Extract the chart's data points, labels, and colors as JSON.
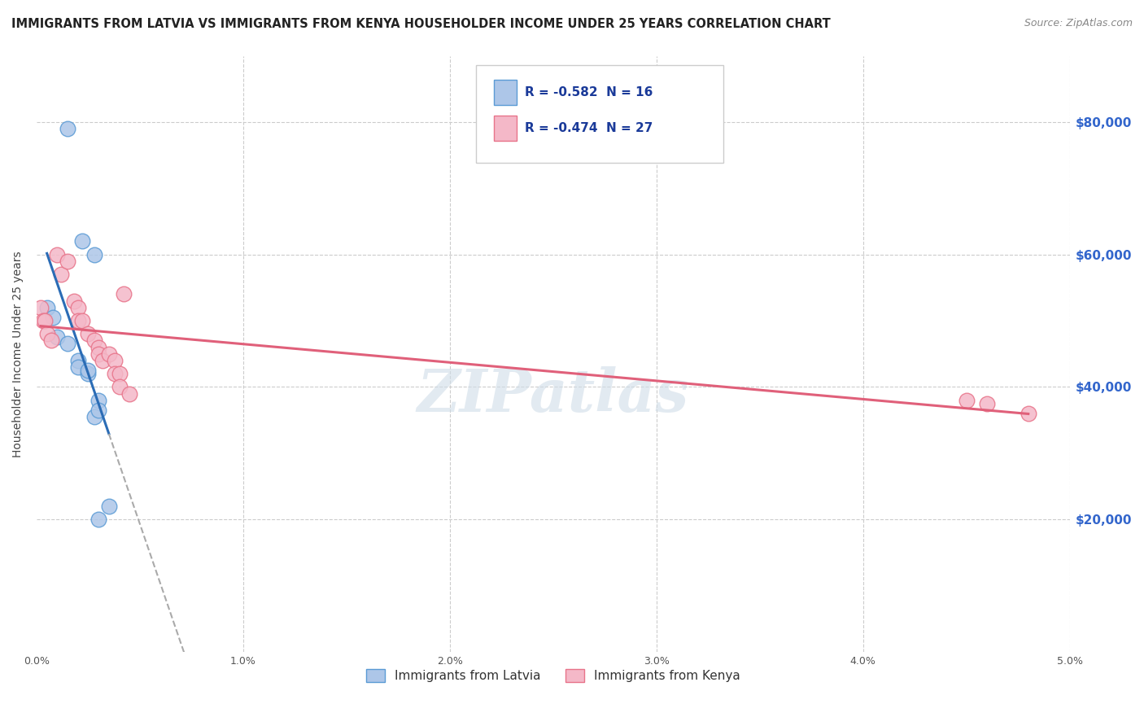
{
  "title": "IMMIGRANTS FROM LATVIA VS IMMIGRANTS FROM KENYA HOUSEHOLDER INCOME UNDER 25 YEARS CORRELATION CHART",
  "source": "Source: ZipAtlas.com",
  "ylabel": "Householder Income Under 25 years",
  "xlim": [
    0.0,
    0.05
  ],
  "ylim": [
    0,
    90000
  ],
  "background_color": "#ffffff",
  "latvia_color": "#adc6e8",
  "latvia_edge_color": "#5b9bd5",
  "kenya_color": "#f4b8c8",
  "kenya_edge_color": "#e8748a",
  "latvia_line_color": "#2b6cb5",
  "kenya_line_color": "#e0607a",
  "legend_R_latvia": "-0.582",
  "legend_N_latvia": "16",
  "legend_R_kenya": "-0.474",
  "legend_N_kenya": "27",
  "latvia_x": [
    0.0015,
    0.0022,
    0.0028,
    0.0005,
    0.0008,
    0.001,
    0.0015,
    0.002,
    0.002,
    0.0025,
    0.003,
    0.0028,
    0.0035,
    0.003,
    0.0025,
    0.003
  ],
  "latvia_y": [
    79000,
    62000,
    60000,
    52000,
    50500,
    47500,
    46500,
    44000,
    43000,
    42000,
    38000,
    35500,
    22000,
    20000,
    42500,
    36500
  ],
  "kenya_x": [
    0.0002,
    0.0003,
    0.0004,
    0.0005,
    0.0007,
    0.001,
    0.0012,
    0.0015,
    0.0018,
    0.002,
    0.002,
    0.0022,
    0.0025,
    0.0028,
    0.003,
    0.003,
    0.0032,
    0.0035,
    0.0038,
    0.0038,
    0.004,
    0.004,
    0.0042,
    0.0045,
    0.045,
    0.046,
    0.048
  ],
  "kenya_y": [
    52000,
    50000,
    50000,
    48000,
    47000,
    60000,
    57000,
    59000,
    53000,
    52000,
    50000,
    50000,
    48000,
    47000,
    46000,
    45000,
    44000,
    45000,
    44000,
    42000,
    42000,
    40000,
    54000,
    39000,
    38000,
    37500,
    36000
  ],
  "watermark_text": "ZIPatlas",
  "watermark_color": "#d0dde8",
  "xtick_labels": [
    "0.0%",
    "1.0%",
    "2.0%",
    "3.0%",
    "4.0%",
    "5.0%"
  ],
  "xticks": [
    0.0,
    0.01,
    0.02,
    0.03,
    0.04,
    0.05
  ],
  "yticks": [
    0,
    20000,
    40000,
    60000,
    80000
  ],
  "right_ytick_labels": [
    "$20,000",
    "$40,000",
    "$60,000",
    "$80,000"
  ],
  "right_yticks": [
    20000,
    40000,
    60000,
    80000
  ]
}
